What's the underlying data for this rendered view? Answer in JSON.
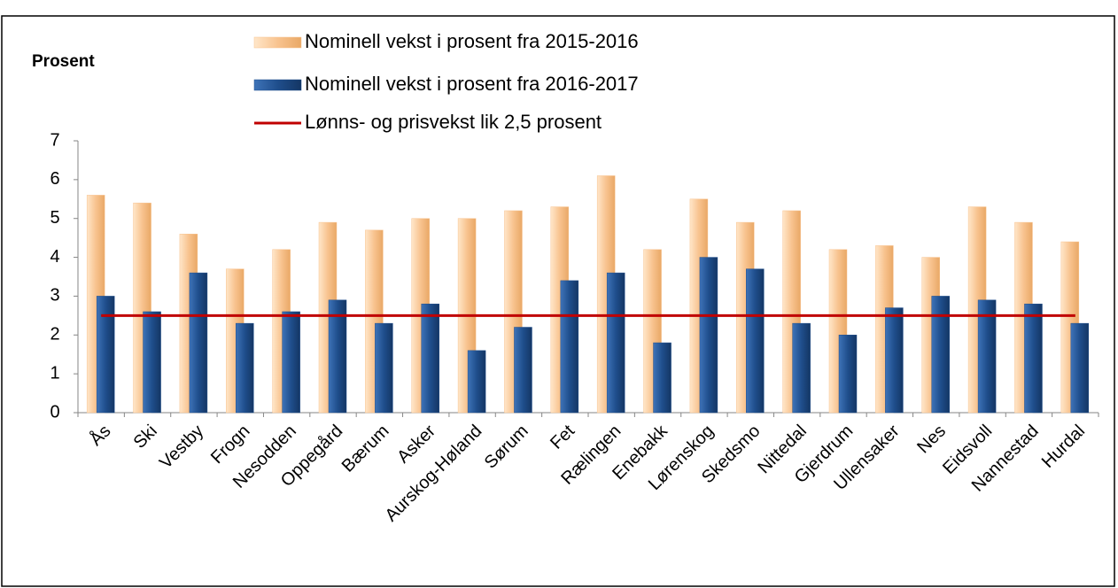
{
  "chart_data": {
    "type": "bar",
    "ylabel": "Prosent",
    "categories": [
      "Ås",
      "Ski",
      "Vestby",
      "Frogn",
      "Nesodden",
      "Oppegård",
      "Bærum",
      "Asker",
      "Aurskog-Høland",
      "Sørum",
      "Fet",
      "Rælingen",
      "Enebakk",
      "Lørenskog",
      "Skedsmo",
      "Nittedal",
      "Gjerdrum",
      "Ullensaker",
      "Nes",
      "Eidsvoll",
      "Nannestad",
      "Hurdal"
    ],
    "series": [
      {
        "name": "Nominell vekst i prosent fra 2015-2016",
        "color": "#f8c38f",
        "type": "bar",
        "values": [
          5.6,
          5.4,
          4.6,
          3.7,
          4.2,
          4.9,
          4.7,
          5.0,
          5.0,
          5.2,
          5.3,
          6.1,
          4.2,
          5.5,
          4.9,
          5.2,
          4.2,
          4.3,
          4.0,
          5.3,
          4.9,
          4.4
        ]
      },
      {
        "name": "Nominell vekst i prosent fra 2016-2017",
        "color": "#1f4e8c",
        "type": "bar",
        "values": [
          3.0,
          2.6,
          3.6,
          2.3,
          2.6,
          2.9,
          2.3,
          2.8,
          1.6,
          2.2,
          3.4,
          3.6,
          1.8,
          4.0,
          3.7,
          2.3,
          2.0,
          2.7,
          3.0,
          2.9,
          2.8,
          2.3
        ]
      },
      {
        "name": "Lønns- og prisvekst lik 2,5 prosent",
        "color": "#c00000",
        "type": "line",
        "values": [
          2.5,
          2.5,
          2.5,
          2.5,
          2.5,
          2.5,
          2.5,
          2.5,
          2.5,
          2.5,
          2.5,
          2.5,
          2.5,
          2.5,
          2.5,
          2.5,
          2.5,
          2.5,
          2.5,
          2.5,
          2.5,
          2.5
        ]
      }
    ],
    "ylim": [
      0,
      7
    ],
    "yticks": [
      0,
      1,
      2,
      3,
      4,
      5,
      6,
      7
    ],
    "grid": false
  }
}
